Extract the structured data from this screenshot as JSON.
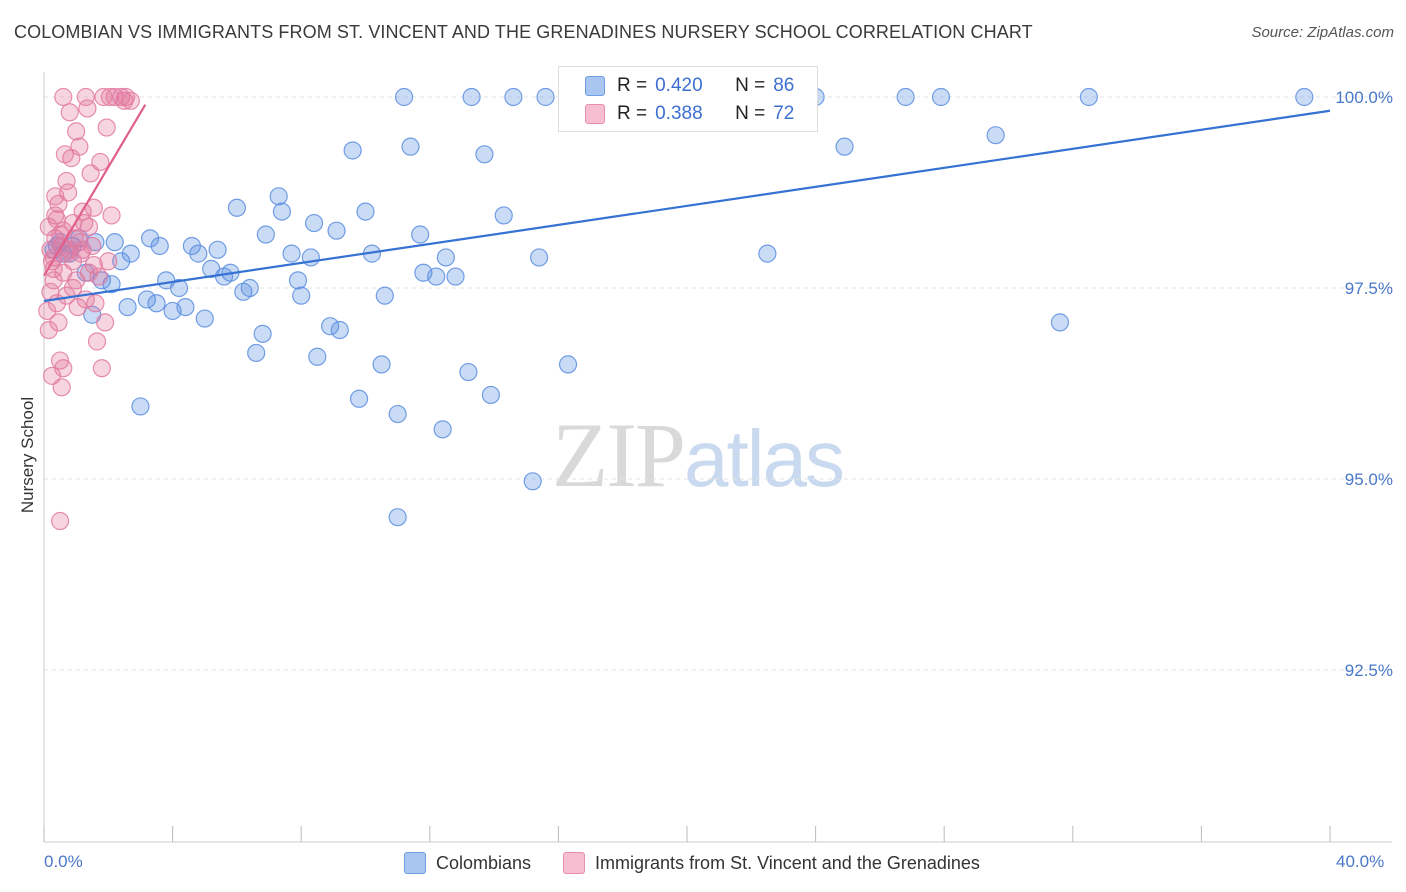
{
  "header": {
    "title": "COLOMBIAN VS IMMIGRANTS FROM ST. VINCENT AND THE GRENADINES NURSERY SCHOOL CORRELATION CHART",
    "source": "Source: ZipAtlas.com"
  },
  "watermark": {
    "zip": "ZIP",
    "atlas": "atlas"
  },
  "legend": {
    "rows": [
      {
        "r_label": "R =",
        "r_value": "0.420",
        "n_label": "N =",
        "n_value": "86",
        "fill": "#a9c6f0",
        "stroke": "#6f9fe0"
      },
      {
        "r_label": "R =",
        "r_value": "0.388",
        "n_label": "N =",
        "n_value": "72",
        "fill": "#f7bdd0",
        "stroke": "#e98fae"
      }
    ]
  },
  "bottom_legend": {
    "items": [
      {
        "label": "Colombians",
        "fill": "#a9c6f0",
        "stroke": "#6f9fe0"
      },
      {
        "label": "Immigrants from St. Vincent and the Grenadines",
        "fill": "#f7bdd0",
        "stroke": "#e98fae"
      }
    ]
  },
  "axes": {
    "x_min_label": "0.0%",
    "x_max_label": "40.0%",
    "y_title": "Nursery School"
  },
  "chart_data": {
    "type": "scatter",
    "title": "COLOMBIAN VS IMMIGRANTS FROM ST. VINCENT AND THE GRENADINES NURSERY SCHOOL CORRELATION CHART",
    "xlabel": "",
    "ylabel": "Nursery School",
    "xlim": [
      0,
      40
    ],
    "ylim": [
      90.0,
      100.3
    ],
    "yticks": [
      92.5,
      95.0,
      97.5,
      100.0
    ],
    "ytick_labels": [
      "92.5%",
      "95.0%",
      "97.5%",
      "100.0%"
    ],
    "grid": true,
    "colors": {
      "blue": "#5b8ee0",
      "pink": "#e27aa0",
      "blue_line": "#3572d2",
      "pink_line": "#e0608c",
      "grid": "#e3e3e3"
    },
    "series": [
      {
        "name": "Colombians",
        "color": "blue",
        "trend": {
          "x": [
            0.0,
            40.0
          ],
          "y": [
            97.33,
            99.82
          ]
        },
        "points": [
          [
            0.4,
            98.05
          ],
          [
            0.6,
            97.95
          ],
          [
            0.9,
            98.05
          ],
          [
            1.3,
            97.7
          ],
          [
            1.8,
            97.6
          ],
          [
            2.2,
            98.1
          ],
          [
            2.1,
            97.55
          ],
          [
            1.5,
            97.15
          ],
          [
            2.4,
            97.85
          ],
          [
            2.6,
            97.25
          ],
          [
            2.7,
            97.95
          ],
          [
            3.0,
            95.95
          ],
          [
            3.2,
            97.35
          ],
          [
            3.3,
            98.15
          ],
          [
            3.5,
            97.3
          ],
          [
            3.6,
            98.05
          ],
          [
            3.8,
            97.6
          ],
          [
            4.0,
            97.2
          ],
          [
            4.2,
            97.5
          ],
          [
            4.4,
            97.25
          ],
          [
            4.6,
            98.05
          ],
          [
            4.8,
            97.95
          ],
          [
            5.0,
            97.1
          ],
          [
            5.2,
            97.75
          ],
          [
            5.4,
            98.0
          ],
          [
            5.6,
            97.65
          ],
          [
            5.8,
            97.7
          ],
          [
            6.0,
            98.55
          ],
          [
            6.2,
            97.45
          ],
          [
            6.4,
            97.5
          ],
          [
            6.6,
            96.65
          ],
          [
            6.8,
            96.9
          ],
          [
            6.9,
            98.2
          ],
          [
            7.3,
            98.7
          ],
          [
            7.4,
            98.5
          ],
          [
            7.7,
            97.95
          ],
          [
            7.9,
            97.6
          ],
          [
            8.0,
            97.4
          ],
          [
            8.3,
            97.9
          ],
          [
            8.4,
            98.35
          ],
          [
            8.5,
            96.6
          ],
          [
            8.9,
            97.0
          ],
          [
            9.1,
            98.25
          ],
          [
            9.2,
            96.95
          ],
          [
            9.6,
            99.3
          ],
          [
            9.8,
            96.05
          ],
          [
            10.0,
            98.5
          ],
          [
            10.2,
            97.95
          ],
          [
            10.5,
            96.5
          ],
          [
            10.6,
            97.4
          ],
          [
            11.0,
            95.85
          ],
          [
            11.2,
            100.0
          ],
          [
            11.4,
            99.35
          ],
          [
            11.7,
            98.2
          ],
          [
            11.8,
            97.7
          ],
          [
            12.2,
            97.65
          ],
          [
            12.4,
            95.65
          ],
          [
            12.5,
            97.9
          ],
          [
            12.8,
            97.65
          ],
          [
            13.2,
            96.4
          ],
          [
            13.3,
            100.0
          ],
          [
            13.7,
            99.25
          ],
          [
            13.9,
            96.1
          ],
          [
            14.3,
            98.45
          ],
          [
            14.6,
            100.0
          ],
          [
            15.2,
            94.97
          ],
          [
            15.4,
            97.9
          ],
          [
            15.6,
            100.0
          ],
          [
            16.3,
            96.5
          ],
          [
            11.0,
            94.5
          ],
          [
            17.1,
            100.0
          ],
          [
            19.1,
            100.0
          ],
          [
            22.5,
            97.95
          ],
          [
            24.0,
            100.0
          ],
          [
            24.9,
            99.35
          ],
          [
            26.8,
            100.0
          ],
          [
            27.9,
            100.0
          ],
          [
            29.6,
            99.5
          ],
          [
            31.6,
            97.05
          ],
          [
            32.5,
            100.0
          ],
          [
            39.2,
            100.0
          ],
          [
            0.3,
            98.0
          ],
          [
            0.5,
            98.1
          ],
          [
            0.8,
            97.95
          ],
          [
            1.1,
            98.15
          ],
          [
            1.6,
            98.1
          ]
        ]
      },
      {
        "name": "Immigrants from St. Vincent and the Grenadines",
        "color": "pink",
        "trend": {
          "x": [
            0.0,
            3.15
          ],
          "y": [
            97.66,
            99.9
          ]
        },
        "points": [
          [
            0.15,
            98.3
          ],
          [
            0.2,
            98.0
          ],
          [
            0.25,
            97.85
          ],
          [
            0.3,
            97.6
          ],
          [
            0.35,
            98.45
          ],
          [
            0.4,
            97.3
          ],
          [
            0.45,
            97.05
          ],
          [
            0.5,
            96.55
          ],
          [
            0.55,
            96.2
          ],
          [
            0.6,
            96.45
          ],
          [
            0.2,
            97.45
          ],
          [
            0.3,
            97.9
          ],
          [
            0.35,
            98.7
          ],
          [
            0.4,
            98.4
          ],
          [
            0.5,
            98.2
          ],
          [
            0.55,
            98.05
          ],
          [
            0.6,
            97.7
          ],
          [
            0.65,
            99.25
          ],
          [
            0.7,
            98.9
          ],
          [
            0.75,
            98.75
          ],
          [
            0.8,
            99.8
          ],
          [
            0.85,
            99.2
          ],
          [
            0.9,
            97.85
          ],
          [
            0.95,
            98.15
          ],
          [
            1.0,
            97.6
          ],
          [
            1.05,
            97.25
          ],
          [
            1.1,
            99.35
          ],
          [
            1.15,
            97.95
          ],
          [
            1.2,
            98.5
          ],
          [
            1.25,
            98.35
          ],
          [
            1.3,
            100.0
          ],
          [
            1.35,
            99.85
          ],
          [
            1.4,
            97.7
          ],
          [
            1.45,
            99.0
          ],
          [
            1.5,
            98.05
          ],
          [
            1.55,
            98.55
          ],
          [
            1.6,
            97.3
          ],
          [
            1.65,
            96.8
          ],
          [
            1.7,
            97.65
          ],
          [
            1.75,
            99.15
          ],
          [
            1.8,
            96.45
          ],
          [
            1.85,
            100.0
          ],
          [
            1.9,
            97.05
          ],
          [
            1.95,
            99.6
          ],
          [
            2.0,
            97.85
          ],
          [
            2.05,
            100.0
          ],
          [
            2.1,
            98.45
          ],
          [
            2.2,
            100.0
          ],
          [
            0.1,
            97.2
          ],
          [
            0.15,
            96.95
          ],
          [
            0.25,
            96.35
          ],
          [
            0.3,
            97.75
          ],
          [
            0.45,
            98.6
          ],
          [
            0.5,
            94.45
          ],
          [
            0.6,
            100.0
          ],
          [
            0.7,
            97.4
          ],
          [
            0.8,
            98.0
          ],
          [
            0.9,
            97.5
          ],
          [
            1.0,
            99.55
          ],
          [
            1.2,
            98.0
          ],
          [
            1.3,
            97.35
          ],
          [
            1.4,
            98.3
          ],
          [
            1.55,
            97.8
          ],
          [
            2.4,
            100.0
          ],
          [
            2.5,
            99.95
          ],
          [
            2.55,
            100.0
          ],
          [
            2.7,
            99.95
          ],
          [
            0.35,
            98.15
          ],
          [
            0.6,
            98.25
          ],
          [
            0.7,
            97.95
          ],
          [
            0.9,
            98.35
          ],
          [
            1.1,
            98.1
          ]
        ]
      }
    ]
  }
}
